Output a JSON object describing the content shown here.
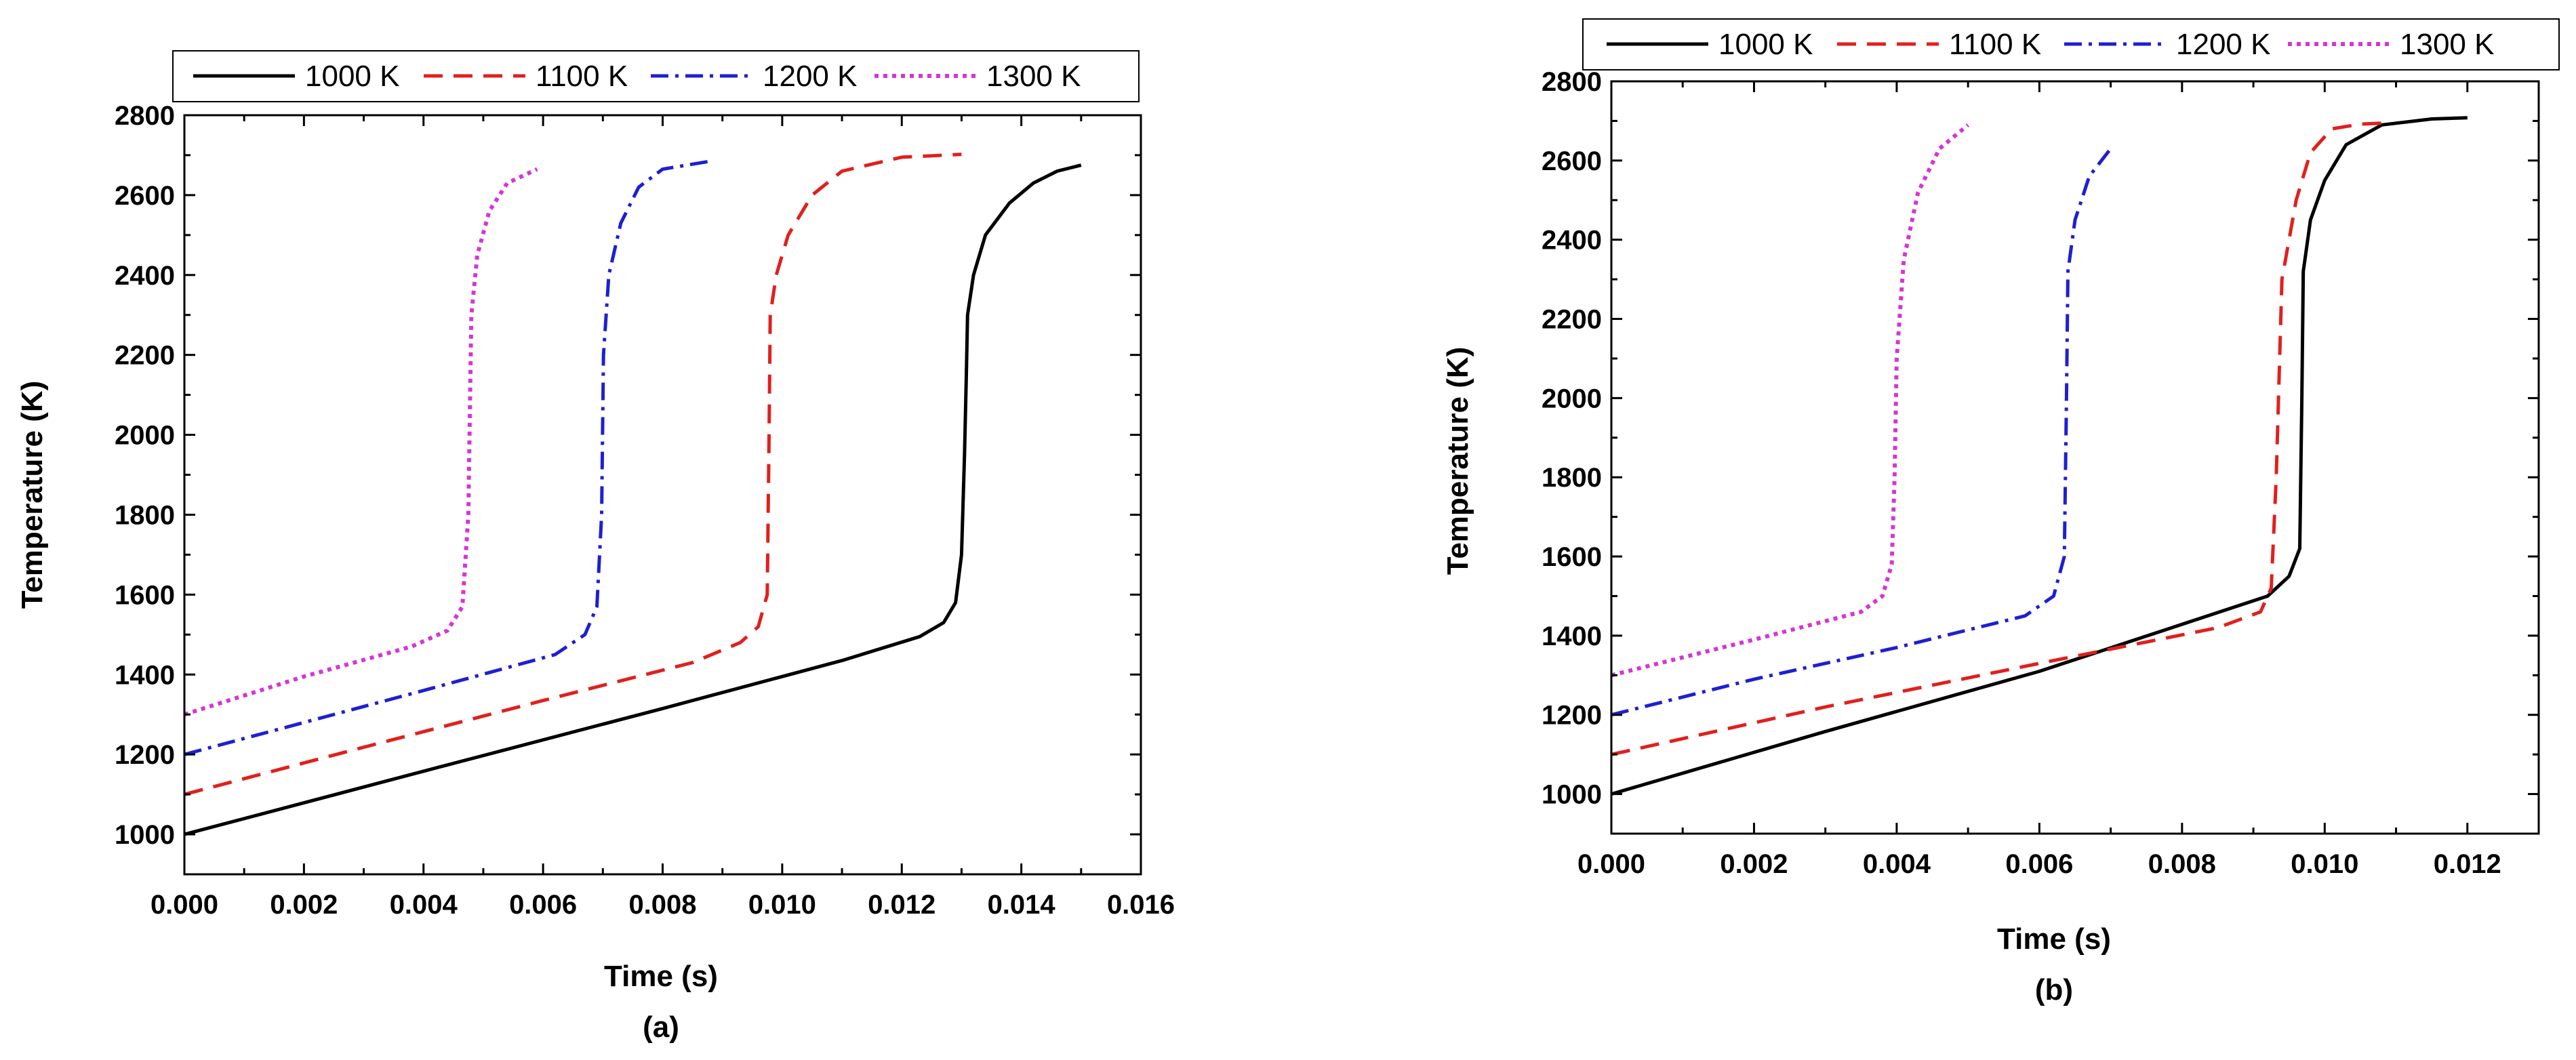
{
  "chart_data": [
    {
      "type": "line",
      "caption": "(a)",
      "xlabel": "Time (s)",
      "ylabel": "Temperature (K)",
      "xlim": [
        0,
        0.016
      ],
      "ylim": [
        900,
        2800
      ],
      "xticks": [
        "0.000",
        "0.002",
        "0.004",
        "0.006",
        "0.008",
        "0.010",
        "0.012",
        "0.014",
        "0.016"
      ],
      "yticks": [
        "1000",
        "1200",
        "1400",
        "1600",
        "1800",
        "2000",
        "2200",
        "2400",
        "2600",
        "2800"
      ],
      "legend": [
        "1000 K",
        "1100 K",
        "1200 K",
        "1300 K"
      ],
      "series": [
        {
          "name": "1000 K",
          "color": "#000000",
          "dash": "solid",
          "x": [
            0,
            0.004,
            0.008,
            0.011,
            0.0123,
            0.0127,
            0.0129,
            0.013,
            0.01305,
            0.01308,
            0.0131,
            0.0132,
            0.0134,
            0.0138,
            0.0142,
            0.0146,
            0.015
          ],
          "y": [
            1000,
            1158,
            1315,
            1435,
            1495,
            1530,
            1580,
            1700,
            1950,
            2150,
            2300,
            2400,
            2500,
            2580,
            2630,
            2660,
            2675
          ]
        },
        {
          "name": "1100 K",
          "color": "#e0201e",
          "dash": "dashed",
          "x": [
            0,
            0.003,
            0.006,
            0.0085,
            0.0093,
            0.0096,
            0.00975,
            0.00978,
            0.0098,
            0.0099,
            0.0101,
            0.0105,
            0.011,
            0.012,
            0.013
          ],
          "y": [
            1100,
            1218,
            1335,
            1430,
            1480,
            1520,
            1600,
            2000,
            2300,
            2400,
            2500,
            2600,
            2660,
            2695,
            2702
          ]
        },
        {
          "name": "1200 K",
          "color": "#1f1fd1",
          "dash": "dashdot",
          "x": [
            0,
            0.002,
            0.004,
            0.0062,
            0.0067,
            0.0069,
            0.00698,
            0.00701,
            0.0071,
            0.0073,
            0.0076,
            0.008,
            0.0088
          ],
          "y": [
            1200,
            1280,
            1360,
            1450,
            1500,
            1570,
            1800,
            2200,
            2400,
            2530,
            2620,
            2665,
            2685
          ]
        },
        {
          "name": "1300 K",
          "color": "#d535d5",
          "dash": "dotted",
          "x": [
            0,
            0.002,
            0.0038,
            0.0044,
            0.00465,
            0.00475,
            0.00478,
            0.0048,
            0.0049,
            0.0051,
            0.0054,
            0.0059
          ],
          "y": [
            1300,
            1395,
            1470,
            1510,
            1570,
            1800,
            2100,
            2300,
            2450,
            2560,
            2630,
            2665
          ]
        }
      ]
    },
    {
      "type": "line",
      "caption": "(b)",
      "xlabel": "Time (s)",
      "ylabel": "Temperature (K)",
      "xlim": [
        0,
        0.013
      ],
      "ylim": [
        900,
        2800
      ],
      "xticks": [
        "0.000",
        "0.002",
        "0.004",
        "0.006",
        "0.008",
        "0.010",
        "0.012"
      ],
      "yticks": [
        "1000",
        "1200",
        "1400",
        "1600",
        "1800",
        "2000",
        "2200",
        "2400",
        "2600",
        "2800"
      ],
      "legend": [
        "1000 K",
        "1100 K",
        "1200 K",
        "1300 K"
      ],
      "series": [
        {
          "name": "1000 K",
          "color": "#000000",
          "dash": "solid",
          "x": [
            0,
            0.003,
            0.006,
            0.0092,
            0.0095,
            0.00965,
            0.00968,
            0.0097,
            0.0098,
            0.01,
            0.0103,
            0.0108,
            0.0115,
            0.012
          ],
          "y": [
            1000,
            1158,
            1310,
            1500,
            1550,
            1620,
            2000,
            2320,
            2450,
            2550,
            2640,
            2690,
            2705,
            2708
          ]
        },
        {
          "name": "1100 K",
          "color": "#e0201e",
          "dash": "dashed",
          "x": [
            0,
            0.003,
            0.006,
            0.0085,
            0.0091,
            0.00925,
            0.00932,
            0.0094,
            0.0096,
            0.0098,
            0.0101,
            0.0105,
            0.0109
          ],
          "y": [
            1100,
            1220,
            1330,
            1420,
            1460,
            1520,
            1800,
            2300,
            2500,
            2620,
            2680,
            2692,
            2695
          ]
        },
        {
          "name": "1200 K",
          "color": "#1f1fd1",
          "dash": "dashdot",
          "x": [
            0,
            0.002,
            0.004,
            0.0058,
            0.0062,
            0.00635,
            0.00638,
            0.0064,
            0.0065,
            0.0067,
            0.007
          ],
          "y": [
            1200,
            1290,
            1370,
            1450,
            1500,
            1600,
            2000,
            2320,
            2450,
            2560,
            2630
          ]
        },
        {
          "name": "1300 K",
          "color": "#d535d5",
          "dash": "dotted",
          "x": [
            0,
            0.002,
            0.0035,
            0.0038,
            0.00393,
            0.00397,
            0.004,
            0.0041,
            0.0043,
            0.0046,
            0.005
          ],
          "y": [
            1300,
            1390,
            1460,
            1500,
            1580,
            1800,
            2100,
            2350,
            2520,
            2630,
            2690
          ]
        }
      ]
    }
  ]
}
